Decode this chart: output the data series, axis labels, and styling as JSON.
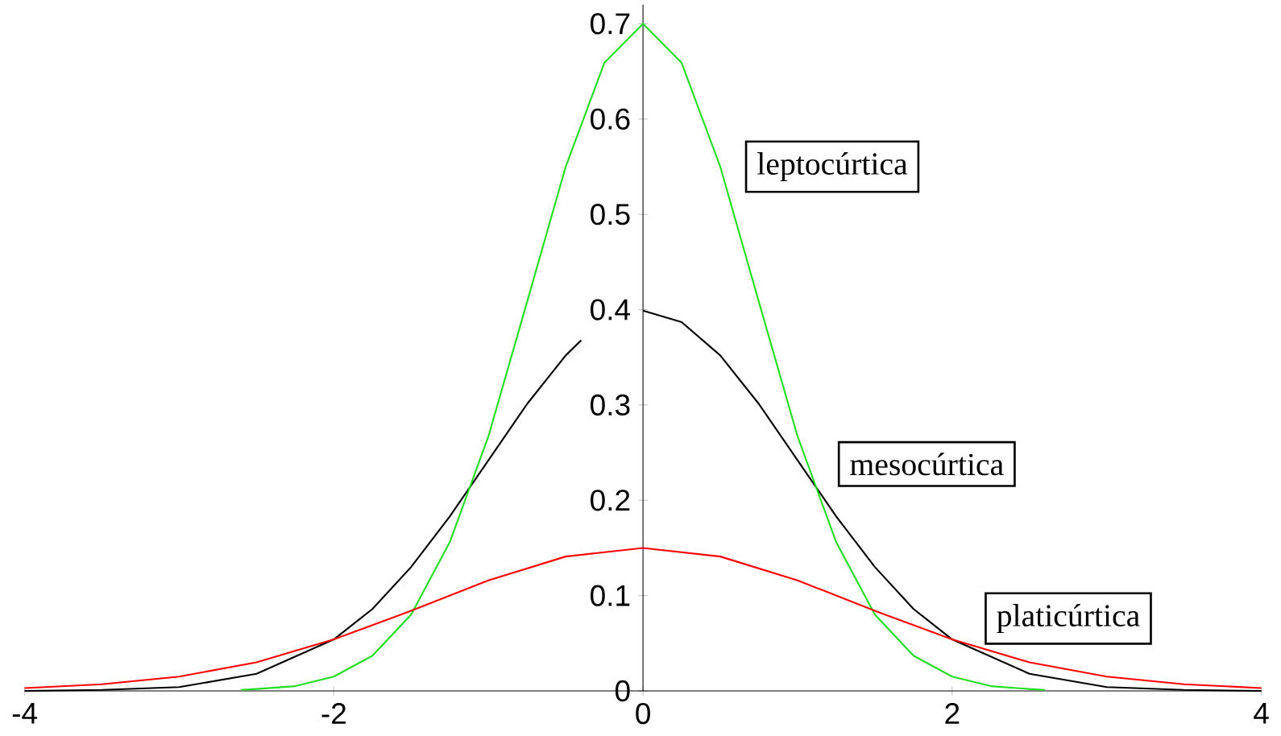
{
  "chart_data": {
    "type": "line",
    "xlim": [
      -4,
      4
    ],
    "ylim": [
      0,
      0.72
    ],
    "xticks": [
      -4,
      -2,
      0,
      2,
      4
    ],
    "yticks": [
      0,
      0.1,
      0.2,
      0.3,
      0.4,
      0.5,
      0.6,
      0.7
    ],
    "grid": false,
    "marker": "none",
    "line_style": "solid",
    "series": [
      {
        "color": "#000000",
        "x": [
          -4,
          -3.5,
          -3,
          -2.5,
          -2,
          -1.75,
          -1.5,
          -1.25,
          -1,
          -0.75,
          -0.5,
          -0.4,
          -0.2,
          0,
          0.25,
          0.5,
          0.75,
          1,
          1.25,
          1.5,
          1.75,
          2,
          2.5,
          3,
          3.5,
          4
        ],
        "values": [
          0,
          0.001,
          0.004,
          0.018,
          0.054,
          0.086,
          0.13,
          0.183,
          0.242,
          0.301,
          0.352,
          0.368,
          null,
          0.399,
          0.387,
          0.352,
          0.301,
          0.242,
          0.183,
          0.13,
          0.086,
          0.054,
          0.018,
          0.004,
          0.001,
          0
        ]
      },
      {
        "color": "#22dd22",
        "x": [
          -2.6,
          -2.5,
          -2.25,
          -2,
          -1.75,
          -1.5,
          -1.25,
          -1,
          -0.75,
          -0.5,
          -0.25,
          0,
          0.25,
          0.5,
          0.75,
          1,
          1.25,
          1.5,
          1.75,
          2,
          2.25,
          2.5,
          2.6
        ],
        "values": [
          0.001,
          0.002,
          0.005,
          0.015,
          0.037,
          0.08,
          0.156,
          0.267,
          0.408,
          0.55,
          0.659,
          0.7,
          0.659,
          0.55,
          0.408,
          0.267,
          0.156,
          0.08,
          0.037,
          0.015,
          0.005,
          0.002,
          0.001
        ]
      },
      {
        "color": "#ff0000",
        "x": [
          -4,
          -3.5,
          -3,
          -2.5,
          -2,
          -1.5,
          -1,
          -0.5,
          0,
          0.5,
          1,
          1.5,
          2,
          2.5,
          3,
          3.5,
          4
        ],
        "values": [
          0.003,
          0.007,
          0.015,
          0.03,
          0.054,
          0.084,
          0.116,
          0.141,
          0.15,
          0.141,
          0.116,
          0.084,
          0.054,
          0.03,
          0.015,
          0.007,
          0.003
        ]
      }
    ],
    "annotations": [
      "leptocúrtica",
      "mesocúrtica",
      "platicúrtica"
    ]
  }
}
